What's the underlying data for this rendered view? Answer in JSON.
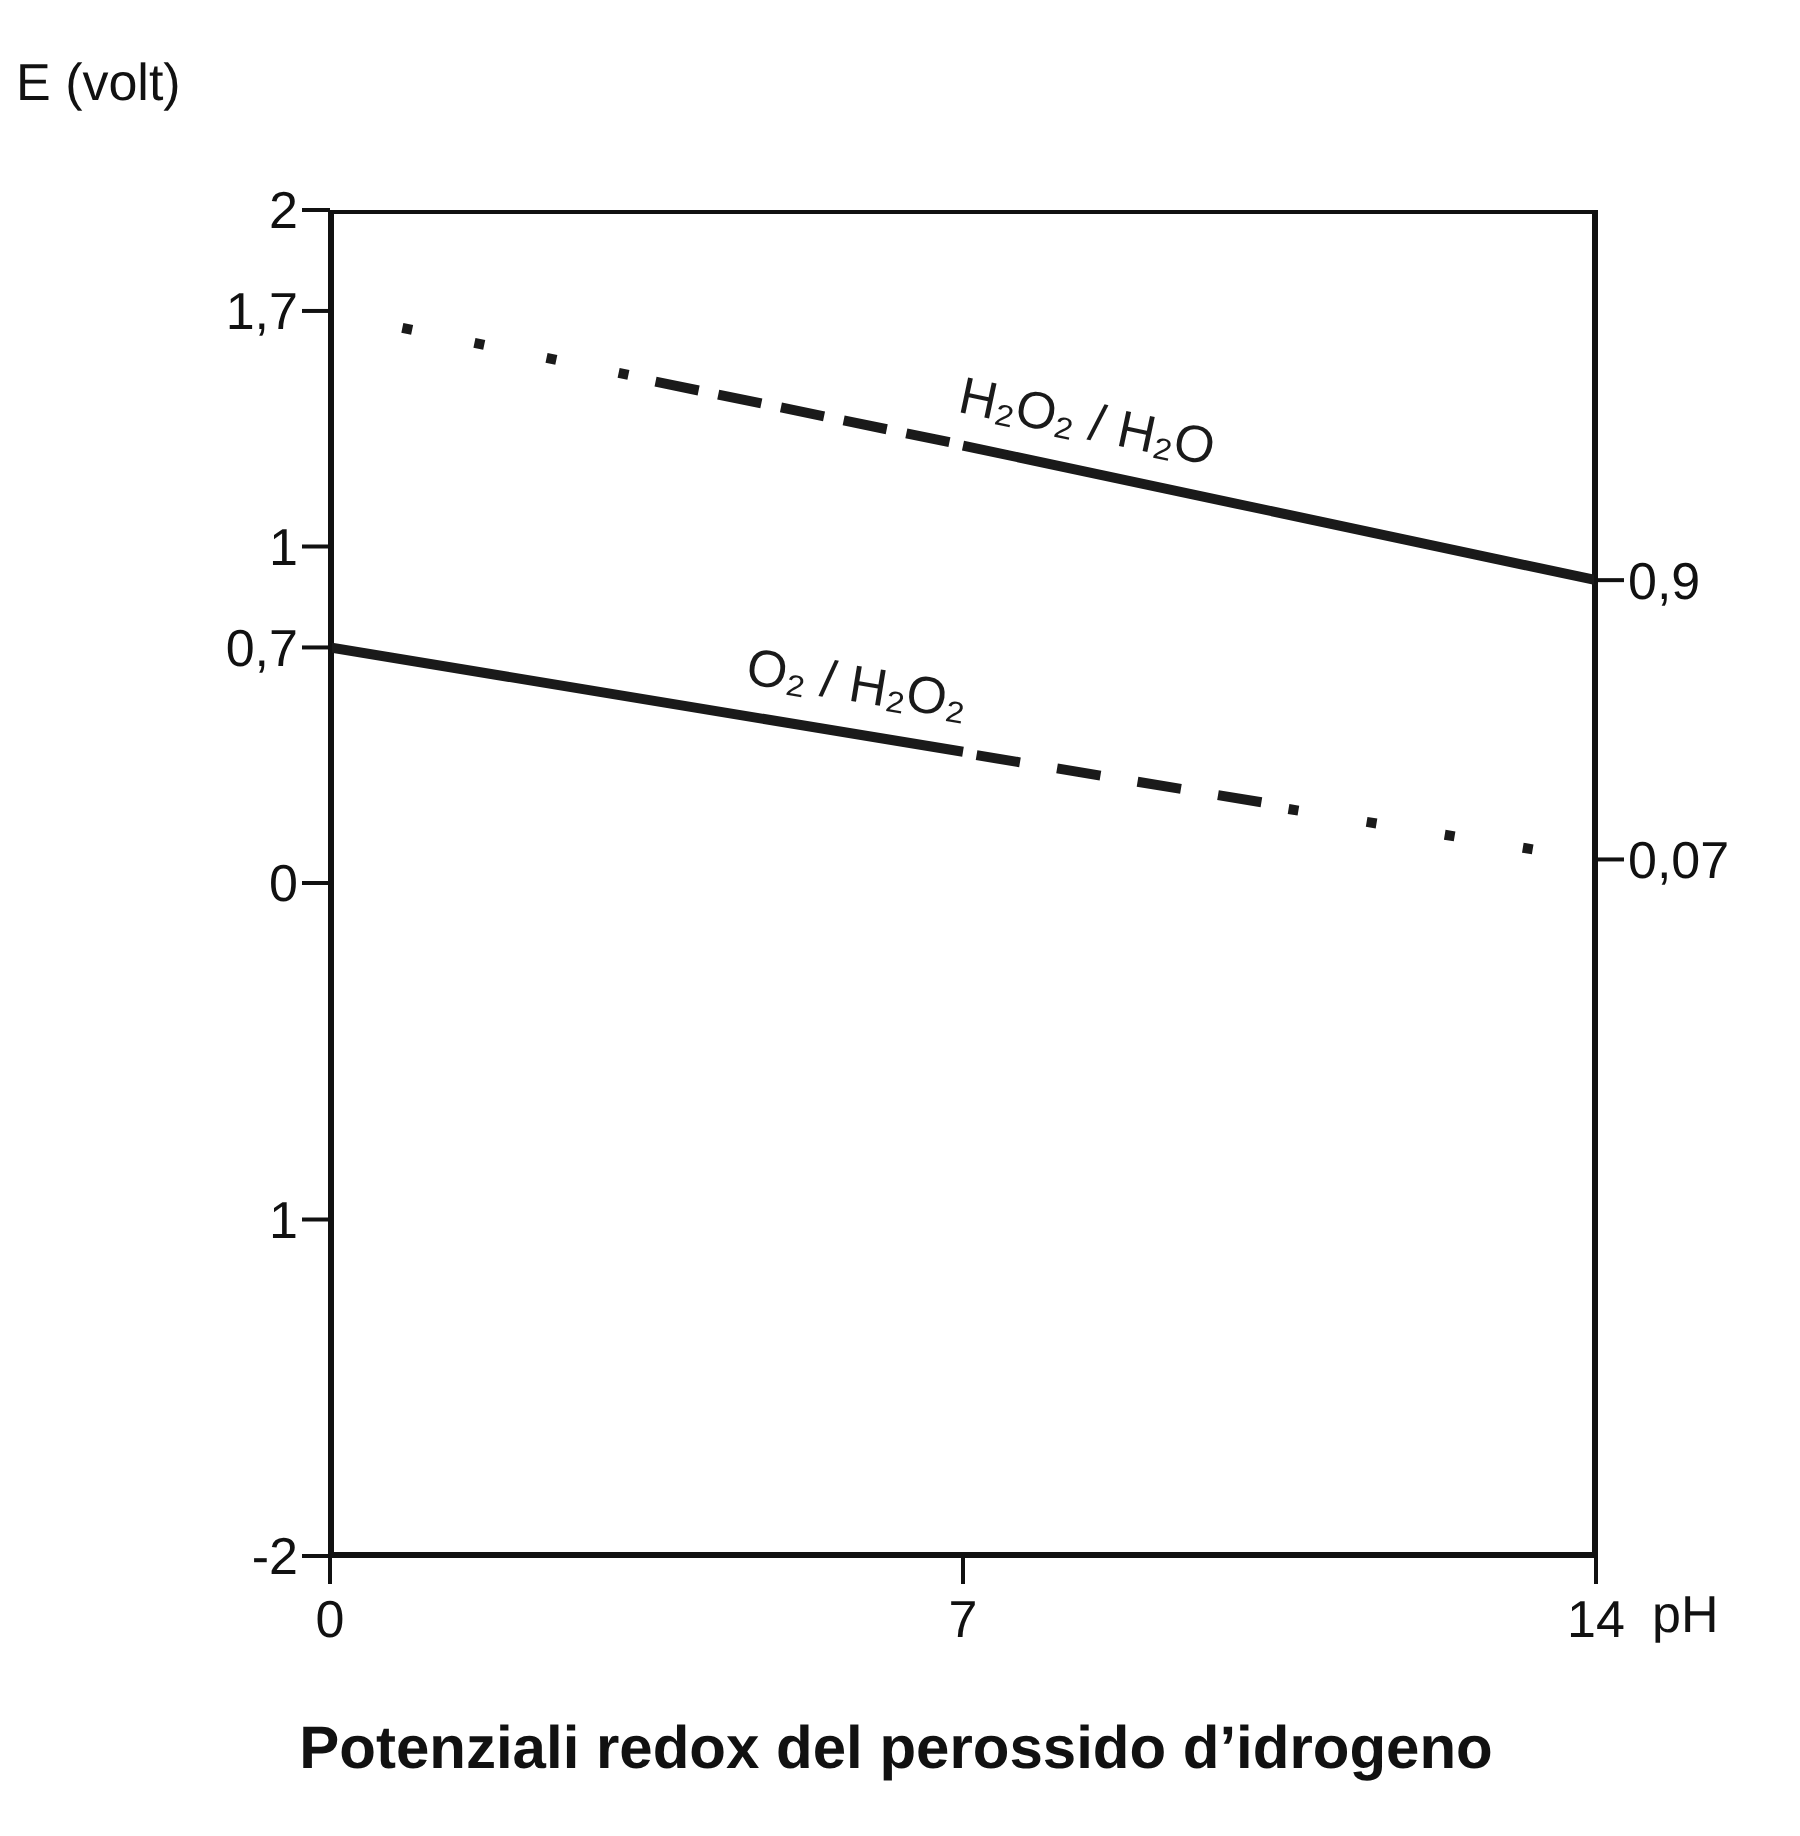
{
  "chart_data": {
    "type": "line",
    "title": "Potenziali redox del perossido d’idrogeno",
    "xlabel": "pH",
    "ylabel": "E (volt)",
    "xlim": [
      0,
      14
    ],
    "xticks": [
      0,
      7,
      14
    ],
    "ylim": [
      -2,
      2
    ],
    "yticks": [
      -2,
      {
        "value": -1,
        "label": "1"
      },
      0,
      {
        "value": 0.7,
        "label": "0,7"
      },
      1,
      {
        "value": 1.7,
        "label": "1,7"
      },
      2
    ],
    "y2lim": [
      -2,
      2
    ],
    "y2ticks": [
      {
        "value": 0.07,
        "label": "0,07"
      },
      {
        "value": 0.9,
        "label": "0,9"
      }
    ],
    "marker": "none",
    "series": [
      {
        "color": "#1a1a1a",
        "line_style": "dotted",
        "x": [
          0.8,
          3.3
        ],
        "values": [
          1.65,
          1.51
        ]
      },
      {
        "color": "#1a1a1a",
        "line_style": "dashed",
        "x": [
          3.6,
          6.85
        ],
        "values": [
          1.49,
          1.31
        ]
      },
      {
        "name": "H₂O₂ / H₂O",
        "color": "#1a1a1a",
        "line_style": "solid",
        "x": [
          7,
          14
        ],
        "values": [
          1.3,
          0.9
        ]
      },
      {
        "name": "O₂ / H₂O₂",
        "color": "#1a1a1a",
        "line_style": "solid",
        "x": [
          0,
          7
        ],
        "values": [
          0.7,
          0.39
        ]
      },
      {
        "color": "#1a1a1a",
        "line_style": "dashed",
        "x": [
          7.15,
          10.3
        ],
        "values": [
          0.38,
          0.24
        ]
      },
      {
        "color": "#1a1a1a",
        "line_style": "dotted",
        "x": [
          10.6,
          13.3
        ],
        "values": [
          0.22,
          0.1
        ]
      }
    ]
  }
}
